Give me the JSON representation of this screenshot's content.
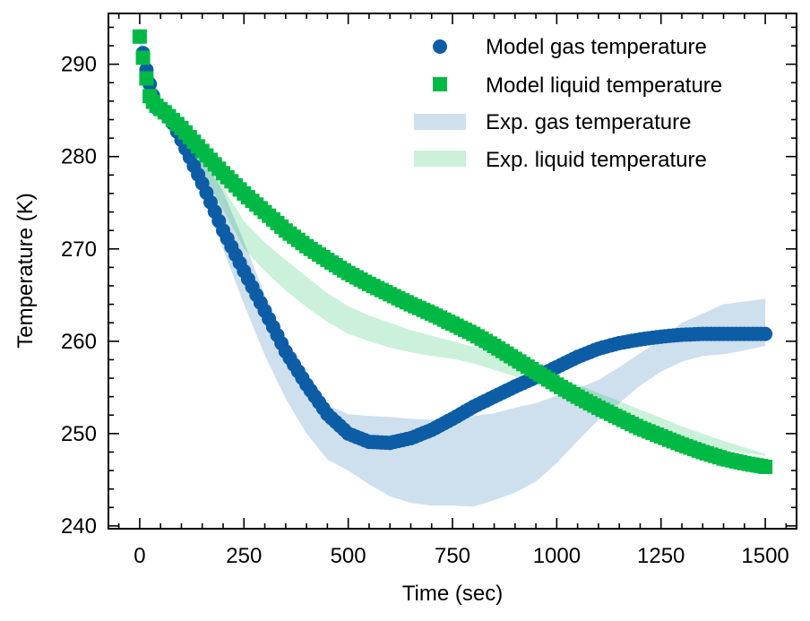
{
  "chart_data": {
    "type": "scatter",
    "title": "",
    "xlabel": "Time (sec)",
    "ylabel": "Temperature (K)",
    "xlim": [
      -75,
      1575
    ],
    "ylim": [
      239.7,
      295.5
    ],
    "xticks": [
      0,
      250,
      500,
      750,
      1000,
      1250,
      1500
    ],
    "yticks": [
      240,
      250,
      260,
      270,
      280,
      290
    ],
    "xtick_labels": [
      "0",
      "250",
      "500",
      "750",
      "1000",
      "1250",
      "1500"
    ],
    "ytick_labels": [
      "240",
      "250",
      "260",
      "270",
      "280",
      "290"
    ],
    "grid": false,
    "legend_position": "upper-right",
    "series": [
      {
        "name": "Model gas temperature",
        "kind": "markers",
        "marker": "circle",
        "color": "#0C5DA5",
        "x": [
          0,
          20,
          40,
          60,
          80,
          100,
          150,
          200,
          250,
          300,
          350,
          400,
          450,
          500,
          550,
          600,
          650,
          700,
          750,
          800,
          850,
          900,
          950,
          1000,
          1050,
          1100,
          1150,
          1200,
          1250,
          1300,
          1350,
          1400,
          1450,
          1500
        ],
        "y": [
          293.0,
          288.5,
          285.3,
          284.9,
          283.6,
          281.8,
          277.1,
          272.0,
          267.6,
          263.3,
          258.9,
          255.3,
          252.1,
          250.0,
          249.1,
          249.0,
          249.5,
          250.4,
          251.6,
          252.9,
          254.0,
          255.1,
          256.1,
          257.2,
          258.3,
          259.2,
          259.8,
          260.2,
          260.5,
          260.7,
          260.8,
          260.8,
          260.8,
          260.8
        ]
      },
      {
        "name": "Model liquid temperature",
        "kind": "markers",
        "marker": "square",
        "color": "#00B945",
        "x": [
          0,
          15,
          25,
          40,
          60,
          100,
          150,
          200,
          250,
          300,
          350,
          400,
          450,
          500,
          550,
          600,
          650,
          700,
          750,
          800,
          850,
          900,
          950,
          1000,
          1050,
          1100,
          1150,
          1200,
          1250,
          1300,
          1350,
          1400,
          1450,
          1500
        ],
        "y": [
          293.0,
          288.7,
          286.3,
          285.5,
          284.8,
          283.1,
          280.6,
          278.2,
          276.0,
          274.0,
          272.0,
          270.3,
          268.8,
          267.4,
          266.2,
          265.1,
          264.0,
          263.0,
          261.9,
          260.8,
          259.5,
          258.1,
          256.7,
          255.3,
          254.0,
          252.8,
          251.7,
          250.6,
          249.7,
          248.8,
          248.0,
          247.3,
          246.8,
          246.4
        ]
      },
      {
        "name": "Exp. gas temperature",
        "kind": "band",
        "color": "#0C5DA5",
        "opacity": 0.2,
        "x": [
          0,
          50,
          100,
          150,
          200,
          250,
          300,
          350,
          400,
          450,
          500,
          550,
          600,
          650,
          700,
          750,
          800,
          850,
          900,
          950,
          1000,
          1050,
          1100,
          1150,
          1200,
          1250,
          1300,
          1350,
          1400,
          1450,
          1500
        ],
        "lower": [
          292.5,
          284.0,
          281.0,
          276.0,
          270.0,
          264.0,
          258.5,
          253.8,
          250.0,
          247.2,
          246.0,
          244.5,
          243.2,
          242.5,
          242.2,
          242.2,
          242.1,
          242.8,
          243.6,
          244.8,
          246.8,
          249.2,
          251.5,
          253.3,
          255.2,
          256.7,
          257.8,
          258.4,
          258.6,
          259.0,
          259.5
        ],
        "upper": [
          292.5,
          286.0,
          283.0,
          280.0,
          276.2,
          270.8,
          265.0,
          259.6,
          255.5,
          253.1,
          252.1,
          251.9,
          251.8,
          251.6,
          251.5,
          251.7,
          251.9,
          252.2,
          252.8,
          253.3,
          254.1,
          254.9,
          255.8,
          257.2,
          258.7,
          260.2,
          262.0,
          263.0,
          264.0,
          264.3,
          264.6
        ]
      },
      {
        "name": "Exp. liquid temperature",
        "kind": "band",
        "color": "#00B945",
        "opacity": 0.2,
        "x": [
          0,
          50,
          100,
          150,
          200,
          250,
          300,
          350,
          400,
          450,
          500,
          550,
          600,
          650,
          700,
          750,
          800,
          850,
          900,
          950,
          1000,
          1050,
          1100,
          1150,
          1200,
          1250,
          1300,
          1350,
          1400,
          1450,
          1500
        ],
        "lower": [
          292.0,
          284.5,
          281.8,
          278.3,
          274.3,
          270.0,
          267.6,
          265.5,
          263.7,
          262.1,
          260.8,
          260.0,
          259.3,
          258.8,
          258.4,
          258.1,
          257.6,
          256.9,
          256.2,
          255.5,
          254.8,
          253.9,
          253.0,
          252.0,
          251.1,
          250.3,
          249.5,
          248.8,
          248.3,
          247.9,
          247.6
        ],
        "upper": [
          293.2,
          286.5,
          283.5,
          280.2,
          276.7,
          273.0,
          270.7,
          268.8,
          267.0,
          265.2,
          263.8,
          262.8,
          262.0,
          261.2,
          260.6,
          260.0,
          259.4,
          258.6,
          257.8,
          257.0,
          256.2,
          255.3,
          254.4,
          253.5,
          252.6,
          251.7,
          250.8,
          250.0,
          249.2,
          248.5,
          247.8
        ]
      }
    ]
  }
}
